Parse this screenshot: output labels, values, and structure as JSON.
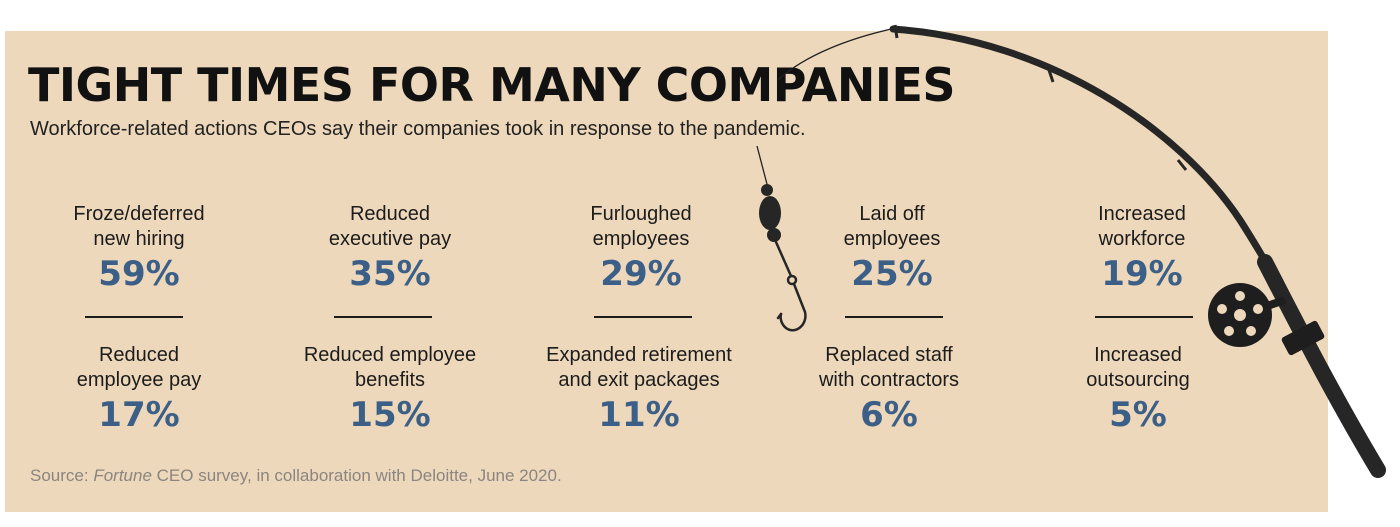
{
  "header": {
    "title": "TIGHT TIMES FOR MANY COMPANIES",
    "subtitle": "Workforce-related actions CEOs say their companies took in response to the pandemic."
  },
  "stats_top": [
    {
      "label": "Froze/deferred\nnew hiring",
      "value": "59%"
    },
    {
      "label": "Reduced\nexecutive pay",
      "value": "35%"
    },
    {
      "label": "Furloughed\nemployees",
      "value": "29%"
    },
    {
      "label": "Laid off\nemployees",
      "value": "25%"
    },
    {
      "label": "Increased\nworkforce",
      "value": "19%"
    }
  ],
  "stats_bottom": [
    {
      "label": "Reduced\nemployee pay",
      "value": "17%"
    },
    {
      "label": "Reduced employee\nbenefits",
      "value": "15%"
    },
    {
      "label": "Expanded retirement\nand exit packages",
      "value": "11%"
    },
    {
      "label": "Replaced staff\nwith contractors",
      "value": "6%"
    },
    {
      "label": "Increased\noutsourcing",
      "value": "5%"
    }
  ],
  "source": {
    "prefix": "Source: ",
    "publication": "Fortune",
    "suffix": " CEO survey, in collaboration with Deloitte, June 2020."
  },
  "colors": {
    "background": "#eed8bb",
    "value_text": "#3b5f87",
    "title_text": "#111111"
  },
  "icons": [
    "fishing-rod-icon",
    "fishing-reel-icon",
    "fishing-hook-icon",
    "bobber-icon"
  ]
}
